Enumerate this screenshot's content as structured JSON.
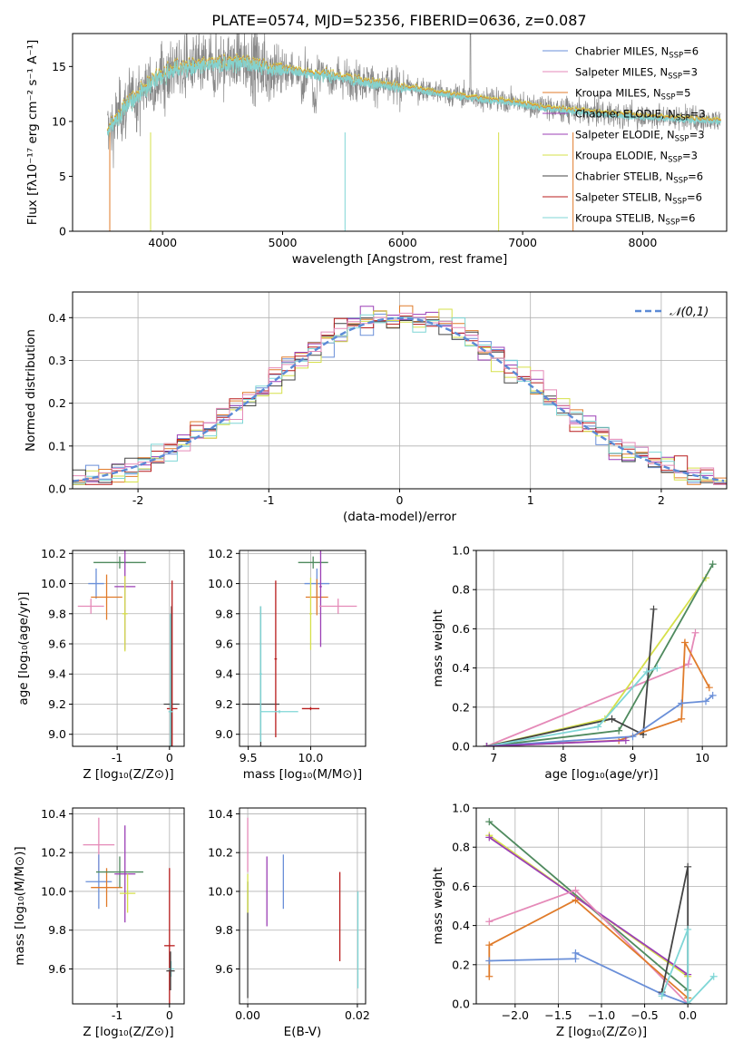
{
  "title": "PLATE=0574, MJD=52356, FIBERID=0636, z=0.087",
  "colors": {
    "chabrier_miles": "#6a8fd8",
    "salpeter_miles": "#e58ab8",
    "kroupa_miles": "#e07b2a",
    "chabrier_elodie": "#9b3fb5",
    "salpeter_elodie": "#9b3fb5",
    "kroupa_elodie": "#d6e04a",
    "chabrier_stelib": "#444444",
    "salpeter_stelib": "#b81c1c",
    "kroupa_stelib": "#7fd6d6",
    "green": "#4f8a5e",
    "data": "#888888",
    "normal": "#5b8ad6"
  },
  "chart_data": [
    {
      "id": "spectrum",
      "type": "line",
      "xlabel": "wavelength [Angstrom, rest frame]",
      "ylabel": "Flux [fλ10⁻¹⁷ erg cm⁻² s⁻¹ A⁻¹]",
      "xlim": [
        3250,
        8700
      ],
      "ylim": [
        0,
        18
      ],
      "xticks": [
        4000,
        5000,
        6000,
        7000,
        8000
      ],
      "yticks": [
        0,
        5,
        10,
        15
      ],
      "series": [
        {
          "name": "Chabrier MILES, N_SSP=6"
        },
        {
          "name": "Salpeter MILES, N_SSP=3"
        },
        {
          "name": "Kroupa MILES, N_SSP=5"
        },
        {
          "name": "Chabrier ELODIE, N_SSP=3"
        },
        {
          "name": "Salpeter ELODIE, N_SSP=3"
        },
        {
          "name": "Kroupa ELODIE, N_SSP=3"
        },
        {
          "name": "Chabrier STELIB, N_SSP=6"
        },
        {
          "name": "Salpeter STELIB, N_SSP=6"
        },
        {
          "name": "Kroupa STELIB, N_SSP=6"
        }
      ],
      "continuum": {
        "x": [
          3540,
          3700,
          3900,
          4100,
          4300,
          4500,
          4700,
          4900,
          5100,
          5300,
          5500,
          5700,
          5900,
          6100,
          6300,
          6500,
          6700,
          6900,
          7100,
          7300,
          7500,
          7800,
          8100,
          8400,
          8650
        ],
        "y": [
          9,
          11.5,
          13.5,
          14.8,
          15.0,
          15.3,
          15.4,
          14.8,
          14.6,
          14.3,
          14.0,
          13.6,
          13.2,
          13.0,
          12.6,
          12.3,
          12.0,
          11.8,
          11.4,
          11.1,
          10.9,
          10.6,
          10.4,
          10.2,
          10.1
        ]
      }
    },
    {
      "id": "residuals",
      "type": "step",
      "xlabel": "(data-model)/error",
      "ylabel": "Normed distribution",
      "xlim": [
        -2.5,
        2.5
      ],
      "ylim": [
        0,
        0.46
      ],
      "xticks": [
        -2,
        -1,
        0,
        1,
        2
      ],
      "yticks": [
        0.0,
        0.1,
        0.2,
        0.3,
        0.4
      ],
      "legend": "𝒩(0,1)",
      "bins": 50
    },
    {
      "id": "age_vs_Z",
      "type": "errorbar",
      "xlabel": "Z [log₁₀(Z/Z⊙)]",
      "ylabel": "age  [log₁₀(age/yr)]",
      "xlim": [
        -1.85,
        0.28
      ],
      "ylim": [
        8.92,
        10.22
      ],
      "xticks": [
        -1,
        0
      ],
      "yticks": [
        9.0,
        9.2,
        9.4,
        9.6,
        9.8,
        10.0,
        10.2
      ],
      "points": [
        {
          "c": "chabrier_miles",
          "x": -1.4,
          "xe": 0.15,
          "y": 10.0,
          "ye": 0.1
        },
        {
          "c": "salpeter_miles",
          "x": -1.5,
          "xe": 0.25,
          "y": 9.85,
          "ye": 0.05
        },
        {
          "c": "kroupa_miles",
          "x": -1.2,
          "xe": 0.3,
          "y": 9.91,
          "ye": 0.15
        },
        {
          "c": "green",
          "x": -0.95,
          "xe": 0.5,
          "y": 10.14,
          "ye": 0.04
        },
        {
          "c": "chabrier_elodie",
          "x": -0.85,
          "xe": 0.2,
          "y": 9.98,
          "ye": 0.42
        },
        {
          "c": "kroupa_elodie",
          "x": -0.85,
          "xe": 0.05,
          "y": 9.8,
          "ye": 0.25
        },
        {
          "c": "chabrier_stelib",
          "x": 0.04,
          "xe": 0.15,
          "y": 9.2,
          "ye": 0.65
        },
        {
          "c": "salpeter_stelib",
          "x": 0.05,
          "xe": 0.1,
          "y": 9.17,
          "ye": 0.85
        },
        {
          "c": "kroupa_stelib",
          "x": 0.02,
          "xe": 0.04,
          "y": 9.15,
          "ye": 0.65
        }
      ]
    },
    {
      "id": "age_vs_mass",
      "type": "errorbar",
      "xlabel": "mass [log₁₀(M/M⊙)]",
      "xlim": [
        9.43,
        10.44
      ],
      "ylim": [
        8.92,
        10.22
      ],
      "xticks": [
        9.5,
        10.0
      ],
      "yticks": [
        9.0,
        9.2,
        9.4,
        9.6,
        9.8,
        10.0,
        10.2
      ],
      "points": [
        {
          "c": "chabrier_stelib",
          "x": 9.6,
          "xe": 0.15,
          "y": 9.2,
          "ye": 0.65
        },
        {
          "c": "salpeter_stelib",
          "x": 9.72,
          "xe": 0.01,
          "y": 9.5,
          "ye": 0.52
        },
        {
          "c": "kroupa_stelib",
          "x": 9.75,
          "xe": 0.15,
          "y": 9.15,
          "ye": 0.01
        },
        {
          "c": "kroupa_stelib",
          "x": 9.6,
          "xe": 0.01,
          "y": 9.4,
          "ye": 0.45
        },
        {
          "c": "salpeter_stelib",
          "x": 10.0,
          "xe": 0.07,
          "y": 9.17,
          "ye": 0.01
        },
        {
          "c": "green",
          "x": 10.02,
          "xe": 0.12,
          "y": 10.14,
          "ye": 0.04
        },
        {
          "c": "chabrier_miles",
          "x": 10.05,
          "xe": 0.1,
          "y": 10.0,
          "ye": 0.1
        },
        {
          "c": "kroupa_miles",
          "x": 10.05,
          "xe": 0.09,
          "y": 9.91,
          "ye": 0.12
        },
        {
          "c": "chabrier_elodie",
          "x": 10.08,
          "xe": 0.01,
          "y": 9.98,
          "ye": 0.4
        },
        {
          "c": "kroupa_elodie",
          "x": 10.0,
          "xe": 0.01,
          "y": 9.8,
          "ye": 0.24
        },
        {
          "c": "salpeter_miles",
          "x": 10.22,
          "xe": 0.15,
          "y": 9.85,
          "ye": 0.05
        }
      ]
    },
    {
      "id": "massweight_vs_age",
      "type": "line",
      "xlabel": "age  [log₁₀(age/yr)]",
      "ylabel": "mass weight",
      "xlim": [
        6.75,
        10.35
      ],
      "ylim": [
        0,
        1.0
      ],
      "xticks": [
        7,
        8,
        9,
        10
      ],
      "yticks": [
        0.0,
        0.2,
        0.4,
        0.6,
        0.8,
        1.0
      ],
      "series": [
        {
          "c": "salpeter_miles",
          "x": [
            6.9,
            9.8,
            9.9
          ],
          "y": [
            0.0,
            0.42,
            0.58
          ]
        },
        {
          "c": "kroupa_elodie",
          "x": [
            6.9,
            8.6,
            10.05
          ],
          "y": [
            0.0,
            0.14,
            0.86
          ]
        },
        {
          "c": "green",
          "x": [
            6.9,
            8.8,
            10.15
          ],
          "y": [
            0.0,
            0.08,
            0.93
          ]
        },
        {
          "c": "chabrier_stelib",
          "x": [
            6.9,
            8.7,
            9.15,
            9.3
          ],
          "y": [
            0.0,
            0.14,
            0.06,
            0.7
          ]
        },
        {
          "c": "kroupa_stelib",
          "x": [
            6.9,
            8.5,
            9.2,
            9.35
          ],
          "y": [
            0.0,
            0.1,
            0.38,
            0.4
          ]
        },
        {
          "c": "kroupa_miles",
          "x": [
            6.9,
            8.8,
            9.7,
            9.75,
            10.1
          ],
          "y": [
            0.0,
            0.03,
            0.14,
            0.53,
            0.3
          ]
        },
        {
          "c": "chabrier_miles",
          "x": [
            6.9,
            9.0,
            9.7,
            10.05,
            10.15
          ],
          "y": [
            0.0,
            0.05,
            0.22,
            0.23,
            0.26
          ]
        },
        {
          "c": "chabrier_elodie",
          "x": [
            6.9,
            8.9
          ],
          "y": [
            0.0,
            0.03
          ]
        }
      ]
    },
    {
      "id": "mass_vs_Z",
      "type": "errorbar",
      "xlabel": "Z [log₁₀(Z/Z⊙)]",
      "ylabel": "mass [log₁₀(M/M⊙)]",
      "xlim": [
        -1.85,
        0.28
      ],
      "ylim": [
        9.42,
        10.43
      ],
      "xticks": [
        -1,
        0
      ],
      "yticks": [
        9.6,
        9.8,
        10.0,
        10.2,
        10.4
      ],
      "points": [
        {
          "c": "salpeter_miles",
          "x": -1.35,
          "xe": 0.3,
          "y": 10.24,
          "ye": 0.14
        },
        {
          "c": "chabrier_miles",
          "x": -1.35,
          "xe": 0.25,
          "y": 10.05,
          "ye": 0.14
        },
        {
          "c": "kroupa_miles",
          "x": -1.2,
          "xe": 0.3,
          "y": 10.02,
          "ye": 0.1
        },
        {
          "c": "green",
          "x": -0.95,
          "xe": 0.45,
          "y": 10.1,
          "ye": 0.08
        },
        {
          "c": "chabrier_elodie",
          "x": -0.85,
          "xe": 0.2,
          "y": 10.09,
          "ye": 0.25
        },
        {
          "c": "kroupa_elodie",
          "x": -0.8,
          "xe": 0.15,
          "y": 9.99,
          "ye": 0.1
        },
        {
          "c": "salpeter_stelib",
          "x": 0.0,
          "xe": 0.1,
          "y": 9.72,
          "ye": 0.4
        },
        {
          "c": "kroupa_stelib",
          "x": 0.03,
          "xe": 0.06,
          "y": 9.6,
          "ye": 0.04
        },
        {
          "c": "chabrier_stelib",
          "x": 0.02,
          "xe": 0.08,
          "y": 9.59,
          "ye": 0.1
        }
      ]
    },
    {
      "id": "mass_vs_ebv",
      "type": "errorbar",
      "xlabel": "E(B-V)",
      "xlim": [
        -0.0015,
        0.0215
      ],
      "ylim": [
        9.42,
        10.43
      ],
      "xticks": [
        0.0,
        0.02
      ],
      "yticks": [
        9.6,
        9.8,
        10.0,
        10.2,
        10.4
      ],
      "points": [
        {
          "c": "salpeter_miles",
          "x": 0.0,
          "xe": 0,
          "y": 10.24,
          "ye": 0.14
        },
        {
          "c": "chabrier_stelib",
          "x": 0.0,
          "xe": 0,
          "y": 9.75,
          "ye": 0.3
        },
        {
          "c": "kroupa_elodie",
          "x": 0.0,
          "xe": 0,
          "y": 9.99,
          "ye": 0.1
        },
        {
          "c": "chabrier_elodie",
          "x": 0.0035,
          "xe": 0,
          "y": 10.0,
          "ye": 0.18
        },
        {
          "c": "chabrier_miles",
          "x": 0.0065,
          "xe": 0,
          "y": 10.05,
          "ye": 0.14
        },
        {
          "c": "salpeter_stelib",
          "x": 0.0168,
          "xe": 0,
          "y": 9.87,
          "ye": 0.23
        },
        {
          "c": "kroupa_stelib",
          "x": 0.0201,
          "xe": 0,
          "y": 9.75,
          "ye": 0.25
        }
      ]
    },
    {
      "id": "massweight_vs_Z",
      "type": "line",
      "xlabel": "Z [log₁₀(Z/Z⊙)]",
      "ylabel": "mass weight",
      "xlim": [
        -2.45,
        0.45
      ],
      "ylim": [
        0,
        1.0
      ],
      "xticks": [
        -2.0,
        -1.5,
        -1.0,
        -0.5,
        0.0
      ],
      "yticks": [
        0.0,
        0.2,
        0.4,
        0.6,
        0.8,
        1.0
      ],
      "series": [
        {
          "c": "green",
          "x": [
            -2.3,
            0.0
          ],
          "y": [
            0.93,
            0.07
          ]
        },
        {
          "c": "kroupa_elodie",
          "x": [
            -2.3,
            0.0
          ],
          "y": [
            0.86,
            0.14
          ]
        },
        {
          "c": "chabrier_elodie",
          "x": [
            -2.3,
            0.0
          ],
          "y": [
            0.85,
            0.15
          ]
        },
        {
          "c": "salpeter_miles",
          "x": [
            -2.3,
            -1.3,
            0.0
          ],
          "y": [
            0.42,
            0.58,
            0.0
          ]
        },
        {
          "c": "kroupa_miles",
          "x": [
            -2.3,
            -2.3,
            -1.3,
            0.0
          ],
          "y": [
            0.14,
            0.3,
            0.53,
            0.03
          ]
        },
        {
          "c": "chabrier_miles",
          "x": [
            -2.3,
            -1.3,
            -1.3,
            -0.3,
            0.0
          ],
          "y": [
            0.22,
            0.23,
            0.26,
            0.05,
            0.0
          ]
        },
        {
          "c": "chabrier_stelib",
          "x": [
            -0.3,
            0.0,
            0.0,
            0.0
          ],
          "y": [
            0.06,
            0.7,
            0.0,
            0.0
          ]
        },
        {
          "c": "kroupa_stelib",
          "x": [
            -0.3,
            0.0,
            0.0,
            0.3
          ],
          "y": [
            0.04,
            0.38,
            0.0,
            0.14
          ]
        }
      ]
    }
  ]
}
